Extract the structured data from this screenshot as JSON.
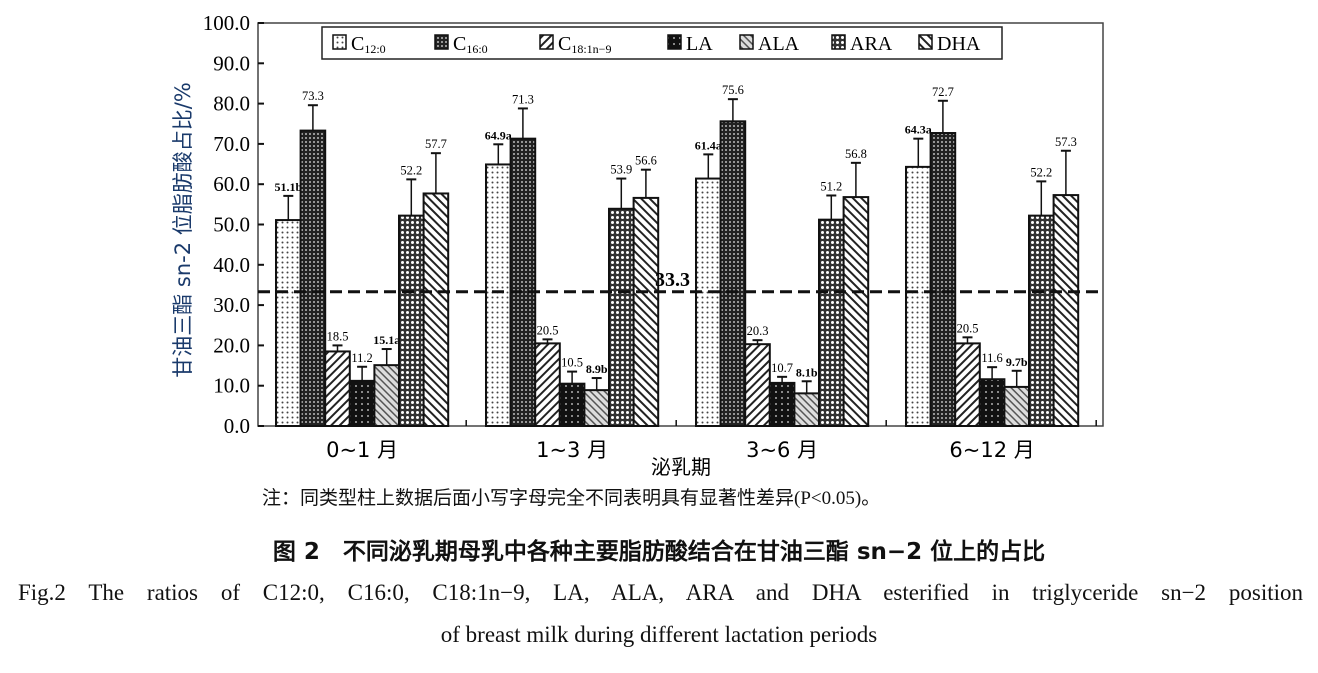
{
  "chart_data": {
    "type": "bar",
    "ylabel": "甘油三酯 sn-2 位脂肪酸占比/%",
    "xlabel": "泌乳期",
    "ylim": [
      0,
      100
    ],
    "yticks": [
      "0.0",
      "10.0",
      "20.0",
      "30.0",
      "40.0",
      "50.0",
      "60.0",
      "70.0",
      "80.0",
      "90.0",
      "100.0"
    ],
    "categories": [
      "0~1 月",
      "1~3 月",
      "3~6 月",
      "6~12 月"
    ],
    "reference_line": {
      "value": 33.3,
      "label": "33.3"
    },
    "legend_placement": "top",
    "series": [
      {
        "name": "C12:0",
        "base": "C",
        "sub": "12:0",
        "pattern": "dots-light",
        "values": [
          51.1,
          64.9,
          61.4,
          64.3
        ],
        "errors": [
          6,
          5,
          6,
          7
        ],
        "labels": [
          "51.1b",
          "64.9a",
          "61.4a",
          "64.3a"
        ]
      },
      {
        "name": "C16:0",
        "base": "C",
        "sub": "16:0",
        "pattern": "checker-dark",
        "values": [
          73.3,
          71.3,
          75.6,
          72.7
        ],
        "errors": [
          6.3,
          7.5,
          5.5,
          8
        ],
        "labels": [
          "73.3",
          "71.3",
          "75.6",
          "72.7"
        ]
      },
      {
        "name": "C18:1n-9",
        "base": "C",
        "sub": "18:1n−9",
        "pattern": "diag-right",
        "values": [
          18.5,
          20.5,
          20.3,
          20.5
        ],
        "errors": [
          1.5,
          1,
          1,
          1.5
        ],
        "labels": [
          "18.5",
          "20.5",
          "20.3",
          "20.5"
        ]
      },
      {
        "name": "LA",
        "base": "LA",
        "sub": "",
        "pattern": "black-checker",
        "values": [
          11.2,
          10.5,
          10.7,
          11.6
        ],
        "errors": [
          3.5,
          3,
          1.5,
          3
        ],
        "labels": [
          "11.2",
          "10.5",
          "10.7",
          "11.6"
        ]
      },
      {
        "name": "ALA",
        "base": "ALA",
        "sub": "",
        "pattern": "diag-hatch",
        "values": [
          15.1,
          8.9,
          8.1,
          9.7
        ],
        "errors": [
          4,
          3,
          3,
          4
        ],
        "labels": [
          "15.1a",
          "8.9b",
          "8.1b",
          "9.7b"
        ]
      },
      {
        "name": "ARA",
        "base": "ARA",
        "sub": "",
        "pattern": "checker-mid",
        "values": [
          52.2,
          53.9,
          51.2,
          52.2
        ],
        "errors": [
          9,
          7.5,
          6,
          8.5
        ],
        "labels": [
          "52.2",
          "53.9",
          "51.2",
          "52.2"
        ]
      },
      {
        "name": "DHA",
        "base": "DHA",
        "sub": "",
        "pattern": "diag-left",
        "values": [
          57.7,
          56.6,
          56.8,
          57.3
        ],
        "errors": [
          10,
          7,
          8.5,
          11
        ],
        "labels": [
          "57.7",
          "56.6",
          "56.8",
          "57.3"
        ]
      }
    ]
  },
  "caption": {
    "note": "注：同类型柱上数据后面小写字母完全不同表明具有显著性差异(P<0.05)。",
    "cn": "图 2　不同泌乳期母乳中各种主要脂肪酸结合在甘油三酯 sn−2 位上的占比",
    "en_line1": "Fig.2   The ratios of C12:0, C16:0, C18:1n−9, LA, ALA, ARA and DHA esterified in triglyceride sn−2 position",
    "en_line2": "of breast milk during different lactation periods"
  }
}
